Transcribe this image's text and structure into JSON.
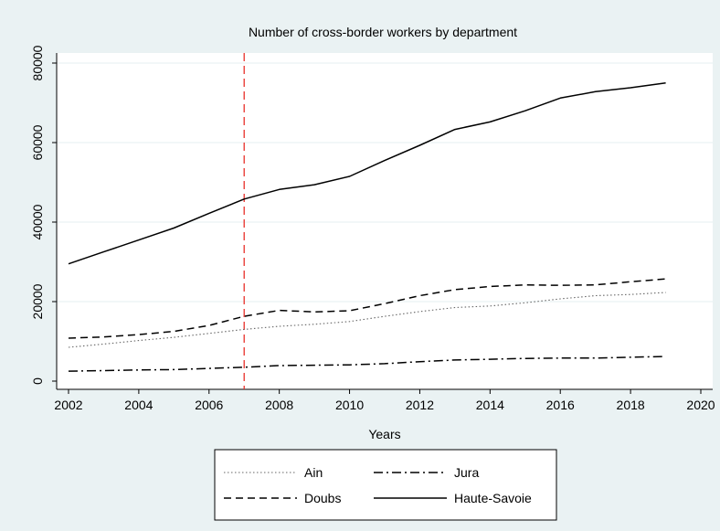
{
  "chart_data": {
    "type": "line",
    "title": "Number of cross-border workers by department",
    "xlabel": "Years",
    "ylabel": "",
    "xlim": [
      2002,
      2020
    ],
    "ylim": [
      0,
      80000
    ],
    "x_ticks": [
      2002,
      2004,
      2006,
      2008,
      2010,
      2012,
      2014,
      2016,
      2018,
      2020
    ],
    "y_ticks": [
      0,
      20000,
      40000,
      60000,
      80000
    ],
    "grid": true,
    "legend_position": "bottom",
    "reference_line": {
      "x": 2007,
      "color": "#e8302a",
      "style": "dashed"
    },
    "x": [
      2002,
      2003,
      2004,
      2005,
      2006,
      2007,
      2008,
      2009,
      2010,
      2011,
      2012,
      2013,
      2014,
      2015,
      2016,
      2017,
      2018,
      2019
    ],
    "series": [
      {
        "name": "Ain",
        "style": "dotted",
        "color": "#666666",
        "values": [
          8500,
          9300,
          10200,
          11000,
          12000,
          13000,
          13800,
          14300,
          15000,
          16300,
          17500,
          18500,
          18900,
          19700,
          20700,
          21500,
          21800,
          22300
        ]
      },
      {
        "name": "Jura",
        "style": "dashdot",
        "color": "#000000",
        "values": [
          2500,
          2650,
          2800,
          2900,
          3200,
          3500,
          3900,
          4000,
          4100,
          4400,
          4900,
          5300,
          5500,
          5700,
          5800,
          5800,
          6000,
          6200
        ]
      },
      {
        "name": "Doubs",
        "style": "dashed",
        "color": "#000000",
        "values": [
          10800,
          11100,
          11700,
          12500,
          14000,
          16300,
          17800,
          17400,
          17700,
          19500,
          21500,
          23000,
          23800,
          24200,
          24100,
          24200,
          25000,
          25700
        ]
      },
      {
        "name": "Haute-Savoie",
        "style": "solid",
        "color": "#000000",
        "values": [
          29500,
          32500,
          35500,
          38500,
          42200,
          45800,
          48200,
          49400,
          51500,
          55500,
          59300,
          63300,
          65200,
          68000,
          71200,
          72800,
          73800,
          75000
        ]
      }
    ]
  }
}
